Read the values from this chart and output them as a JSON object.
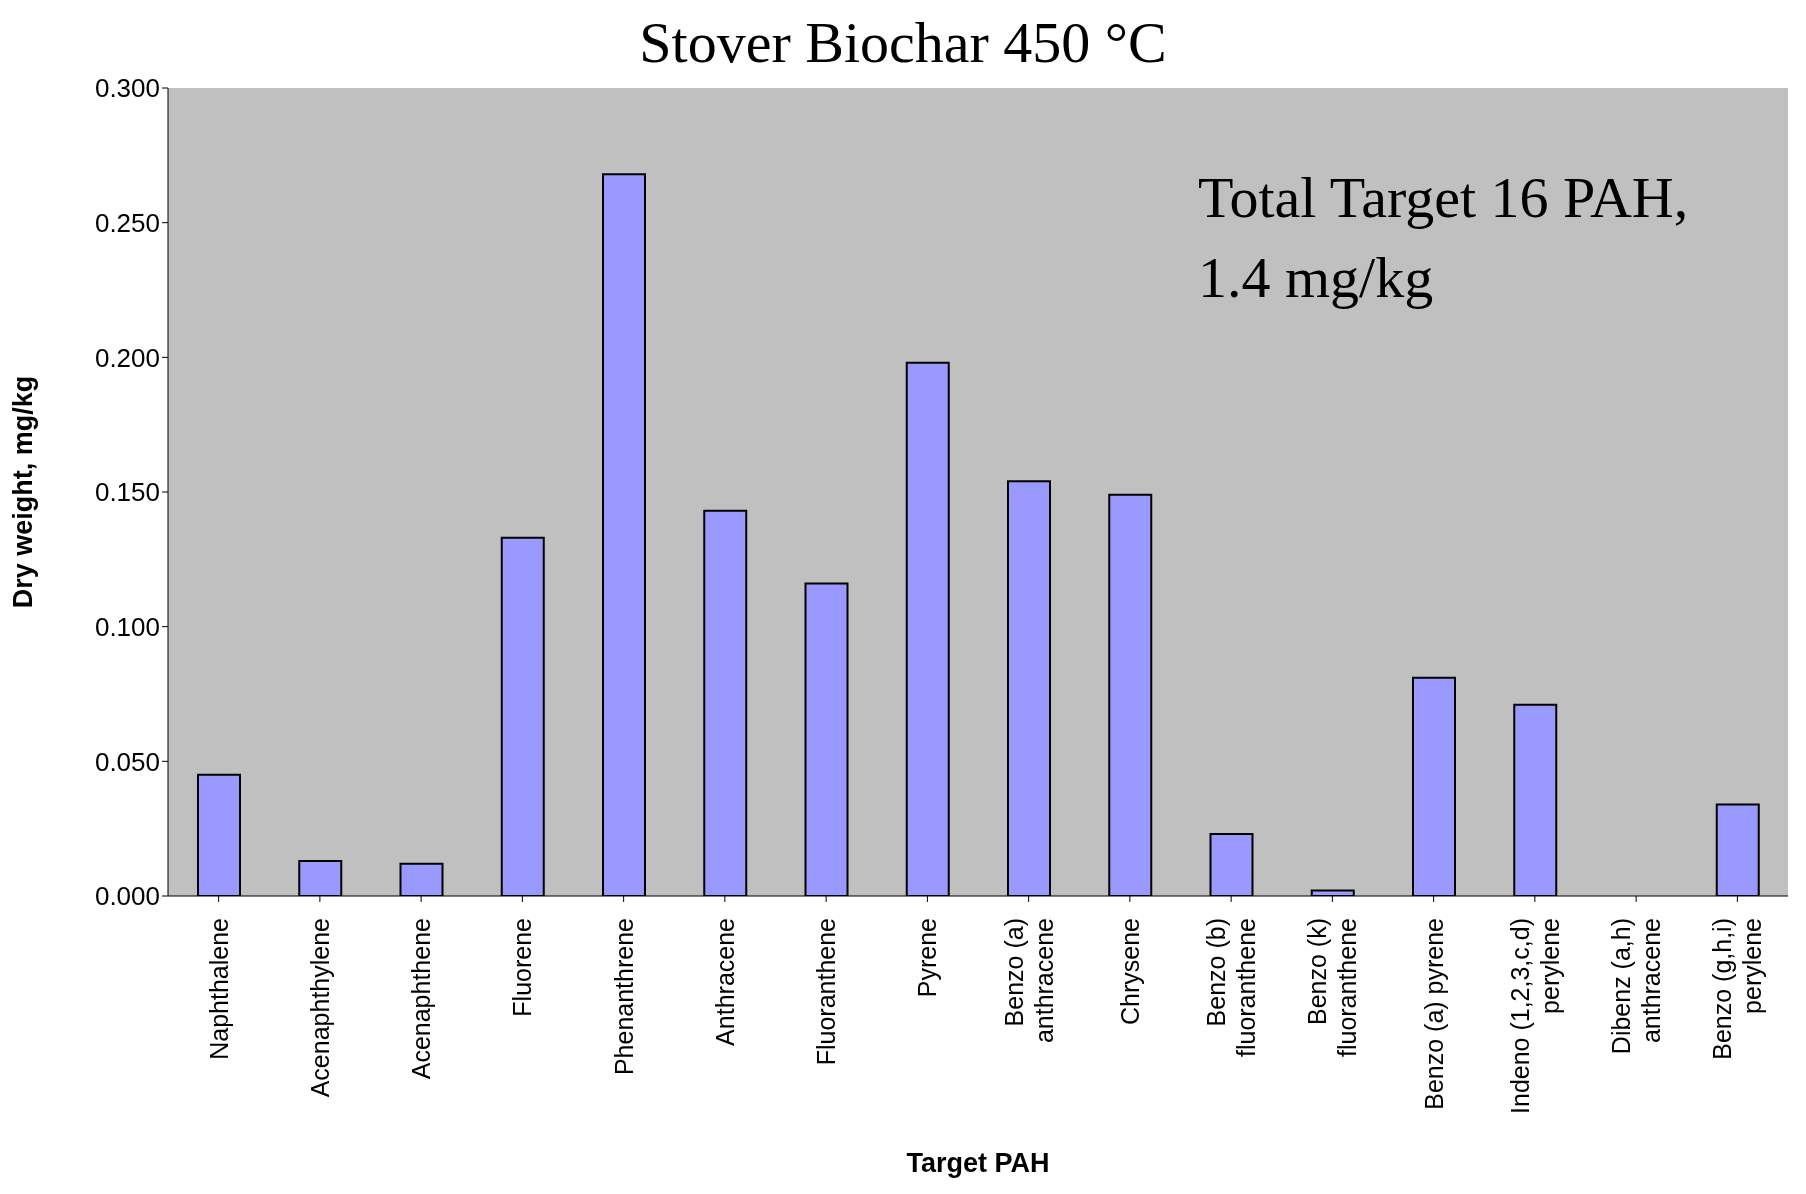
{
  "chart_data": {
    "type": "bar",
    "title": "Stover Biochar 450 °C",
    "xlabel": "Target PAH",
    "ylabel": "Dry weight, mg/kg",
    "categories": [
      "Naphthalene",
      "Acenaphthylene",
      "Acenaphthene",
      "Fluorene",
      "Phenanthrene",
      "Anthracene",
      "Fluoranthene",
      "Pyrene",
      "Benzo (a) anthracene",
      "Chrysene",
      "Benzo (b) fluoranthene",
      "Benzo (k) fluoranthene",
      "Benzo (a) pyrene",
      "Indeno (1,2,3,c,d) perylene",
      "Dibenz (a,h) anthracene",
      "Benzo (g,h,i) perylene"
    ],
    "values": [
      0.045,
      0.013,
      0.012,
      0.133,
      0.268,
      0.143,
      0.116,
      0.198,
      0.154,
      0.149,
      0.023,
      0.002,
      0.081,
      0.071,
      0,
      0.034
    ],
    "color": "#9999ff",
    "ylim": [
      0,
      0.3
    ],
    "yticks": [
      {
        "value": 0,
        "label": "0.000"
      },
      {
        "value": 0.05,
        "label": "0.050"
      },
      {
        "value": 0.1,
        "label": "0.100"
      },
      {
        "value": 0.15,
        "label": "0.150"
      },
      {
        "value": 0.2,
        "label": "0.200"
      },
      {
        "value": 0.25,
        "label": "0.250"
      },
      {
        "value": 0.3,
        "label": "0.300"
      }
    ],
    "annotations": [
      "Total Target 16 PAH, 1.4 mg/kg"
    ],
    "grid": false
  }
}
